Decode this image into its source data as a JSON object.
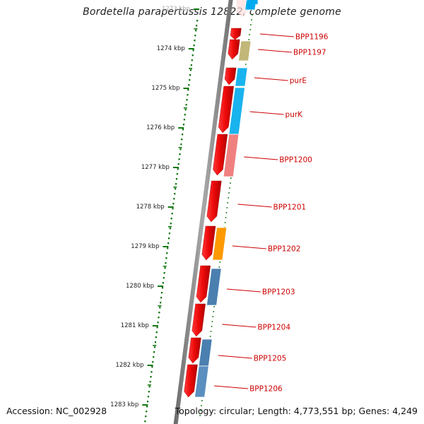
{
  "title": "Bordetella parapertussis 12822, complete genome",
  "footer": {
    "accession": "Accession: NC_002928",
    "topology": "Topology: circular; Length: 4,773,551 bp; Genes: 4,249"
  },
  "ruler": {
    "ticks": [
      {
        "label": "1273 kbp",
        "faded": true
      },
      {
        "label": "1274 kbp"
      },
      {
        "label": "1275 kbp"
      },
      {
        "label": "1276 kbp"
      },
      {
        "label": "1277 kbp"
      },
      {
        "label": "1278 kbp"
      },
      {
        "label": "1279 kbp"
      },
      {
        "label": "1280 kbp"
      },
      {
        "label": "1281 kbp"
      },
      {
        "label": "1282 kbp"
      },
      {
        "label": "1283 kbp"
      }
    ]
  },
  "genes": [
    {
      "label": "BPP1196",
      "cog_color": "#00aaee"
    },
    {
      "label": "BPP1197",
      "cog_color": "#c2b778"
    },
    {
      "label": "purE",
      "cog_color": "#19b3ee"
    },
    {
      "label": "purK",
      "cog_color": "#19b3ee"
    },
    {
      "label": "BPP1200",
      "cog_color": "#f08080"
    },
    {
      "label": "BPP1201",
      "cog_color": null
    },
    {
      "label": "BPP1202",
      "cog_color": "#ff9900"
    },
    {
      "label": "BPP1203",
      "cog_color": "#4a7fb0"
    },
    {
      "label": "BPP1204",
      "cog_color": null
    },
    {
      "label": "BPP1205",
      "cog_color": "#4a7fb0"
    },
    {
      "label": "BPP1206",
      "cog_color": "#5b8fc0"
    }
  ],
  "colors": {
    "cds": "#ee1111",
    "backbone": "#888888",
    "ruler": "#117711",
    "label": "#cc0000"
  }
}
